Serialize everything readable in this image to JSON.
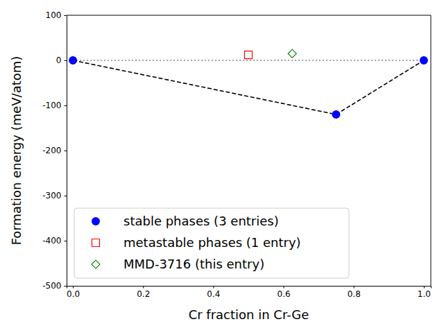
{
  "chart_data": {
    "type": "scatter",
    "x_label": "Cr fraction in Cr-Ge",
    "y_label": "Formation energy (meV/atom)",
    "xlim": [
      -0.018,
      1.02
    ],
    "ylim": [
      -500,
      100
    ],
    "xticks": [
      {
        "value": 0,
        "label": "0.0"
      },
      {
        "value": 0.2,
        "label": "0.2"
      },
      {
        "value": 0.4,
        "label": "0.4"
      },
      {
        "value": 0.6,
        "label": "0.6"
      },
      {
        "value": 0.8,
        "label": "0.8"
      },
      {
        "value": 1,
        "label": "1.0"
      }
    ],
    "yticks": [
      -500,
      -400,
      -300,
      -200,
      -100,
      0,
      100
    ],
    "legend": "lower left",
    "grid": false,
    "series": [
      {
        "type": "line",
        "line_style": "dotted",
        "color": "#808080",
        "x": [
          0,
          1
        ],
        "values": [
          0,
          0
        ]
      },
      {
        "type": "line",
        "line_style": "dashed",
        "color": "#000000",
        "x": [
          0,
          0.75,
          1
        ],
        "values": [
          0,
          -120,
          0
        ]
      },
      {
        "name": "stable phases (3 entries)",
        "type": "scatter",
        "marker": "circle",
        "color": "#0000ff",
        "x": [
          0,
          0.75,
          1
        ],
        "values": [
          0,
          -120,
          0
        ]
      },
      {
        "name": "metastable phases (1 entry)",
        "type": "scatter",
        "marker": "square-open",
        "color": "#ff0000",
        "x": [
          0.5
        ],
        "values": [
          12
        ]
      },
      {
        "name": "MMD-3716 (this entry)",
        "type": "scatter",
        "marker": "diamond-open",
        "color": "#008000",
        "x": [
          0.625
        ],
        "values": [
          15
        ]
      }
    ]
  }
}
